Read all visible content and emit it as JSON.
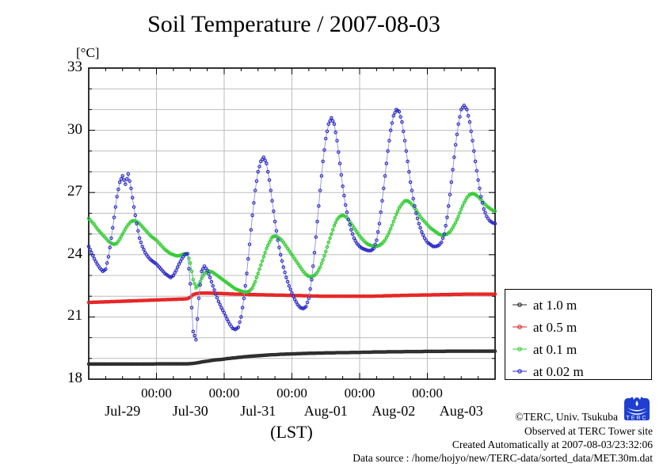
{
  "title": "Soil Temperature / 2007-08-03",
  "y_axis": {
    "unit": "[°C]",
    "tick_labels": [
      "18",
      "21",
      "24",
      "27",
      "30",
      "33"
    ],
    "tick_values": [
      18,
      21,
      24,
      27,
      30,
      33
    ]
  },
  "x_axis": {
    "axis_label": "(LST)",
    "time_ticks": [
      {
        "hour": 24,
        "label": "00:00"
      },
      {
        "hour": 48,
        "label": "00:00"
      },
      {
        "hour": 72,
        "label": "00:00"
      },
      {
        "hour": 96,
        "label": "00:00"
      },
      {
        "hour": 120,
        "label": "00:00"
      }
    ],
    "date_labels": [
      {
        "center_hour": 12,
        "label": "Jul-29"
      },
      {
        "center_hour": 36,
        "label": "Jul-30"
      },
      {
        "center_hour": 60,
        "label": "Jul-31"
      },
      {
        "center_hour": 84,
        "label": "Aug-01"
      },
      {
        "center_hour": 108,
        "label": "Aug-02"
      },
      {
        "center_hour": 132,
        "label": "Aug-03"
      }
    ]
  },
  "legend": {
    "items": [
      {
        "label": "at 1.0 m",
        "color": "#2a2a2a"
      },
      {
        "label": "at 0.5 m",
        "color": "#e62222"
      },
      {
        "label": "at 0.1 m",
        "color": "#33cc33"
      },
      {
        "label": "at 0.02 m",
        "color": "#2929c8"
      }
    ]
  },
  "footer": {
    "copyright": "©TERC, Univ. Tsukuba",
    "observed": "Observed at TERC Tower site",
    "created": "Created Automatically at 2007-08-03/23:32:06",
    "datasource": "Data source : /home/hojyo/new/TERC-data/sorted_data/MET.30m.dat",
    "logo_text": "TERC"
  },
  "chart_data": {
    "type": "line",
    "title": "Soil Temperature / 2007-08-03",
    "ylabel": "[°C]",
    "xlabel": "(LST)",
    "ylim": [
      18,
      33
    ],
    "grid": true,
    "legend_position": "right-outside",
    "x_unit": "hours since 2007-07-29 00:00 LST",
    "x_hours_start": 0,
    "x_hours_step": 1,
    "x_hours_total": 144,
    "series": [
      {
        "name": "at 1.0 m",
        "depth_m": 1.0,
        "color": "#2a2a2a",
        "line_color": "#2a2a2a",
        "values": [
          18.73,
          18.73,
          18.73,
          18.73,
          18.73,
          18.73,
          18.73,
          18.73,
          18.73,
          18.73,
          18.73,
          18.73,
          18.73,
          18.73,
          18.73,
          18.73,
          18.73,
          18.73,
          18.73,
          18.73,
          18.73,
          18.73,
          18.73,
          18.73,
          18.74,
          18.74,
          18.74,
          18.74,
          18.74,
          18.74,
          18.74,
          18.74,
          18.74,
          18.74,
          18.74,
          18.74,
          18.75,
          18.76,
          18.78,
          18.8,
          18.83,
          18.85,
          18.87,
          18.89,
          18.91,
          18.93,
          18.94,
          18.95,
          18.97,
          18.99,
          19.0,
          19.02,
          19.03,
          19.05,
          19.06,
          19.08,
          19.09,
          19.1,
          19.11,
          19.12,
          19.13,
          19.14,
          19.15,
          19.16,
          19.17,
          19.18,
          19.18,
          19.19,
          19.2,
          19.2,
          19.21,
          19.21,
          19.22,
          19.22,
          19.23,
          19.23,
          19.24,
          19.24,
          19.25,
          19.25,
          19.25,
          19.26,
          19.26,
          19.26,
          19.27,
          19.27,
          19.27,
          19.27,
          19.28,
          19.28,
          19.28,
          19.28,
          19.28,
          19.29,
          19.29,
          19.29,
          19.29,
          19.3,
          19.3,
          19.3,
          19.3,
          19.31,
          19.31,
          19.31,
          19.31,
          19.31,
          19.32,
          19.32,
          19.32,
          19.32,
          19.32,
          19.32,
          19.33,
          19.33,
          19.33,
          19.33,
          19.33,
          19.33,
          19.33,
          19.34,
          19.34,
          19.34,
          19.34,
          19.34,
          19.34,
          19.34,
          19.34,
          19.35,
          19.35,
          19.35,
          19.35,
          19.35,
          19.35,
          19.35,
          19.35,
          19.35,
          19.35,
          19.35,
          19.35,
          19.35,
          19.35,
          19.35,
          19.35,
          19.35,
          19.35
        ]
      },
      {
        "name": "at 0.5 m",
        "depth_m": 0.5,
        "color": "#e62222",
        "line_color": "#e62222",
        "values": [
          21.7,
          21.7,
          21.71,
          21.71,
          21.72,
          21.72,
          21.73,
          21.73,
          21.74,
          21.74,
          21.75,
          21.75,
          21.76,
          21.76,
          21.77,
          21.77,
          21.78,
          21.78,
          21.79,
          21.79,
          21.8,
          21.8,
          21.81,
          21.81,
          21.82,
          21.82,
          21.83,
          21.83,
          21.84,
          21.84,
          21.85,
          21.85,
          21.86,
          21.86,
          21.87,
          21.88,
          21.95,
          22.08,
          22.12,
          22.14,
          22.15,
          22.15,
          22.15,
          22.15,
          22.14,
          22.14,
          22.13,
          22.13,
          22.12,
          22.12,
          22.11,
          22.11,
          22.1,
          22.1,
          22.1,
          22.09,
          22.09,
          22.08,
          22.08,
          22.08,
          22.07,
          22.07,
          22.07,
          22.06,
          22.06,
          22.06,
          22.05,
          22.05,
          22.05,
          22.05,
          22.04,
          22.04,
          22.04,
          22.03,
          22.03,
          22.03,
          22.02,
          22.02,
          22.02,
          22.01,
          22.01,
          22.01,
          22.0,
          22.0,
          22.0,
          22.0,
          22.0,
          22.0,
          22.0,
          22.0,
          22.0,
          22.0,
          22.0,
          22.0,
          22.0,
          22.0,
          22.0,
          22.0,
          22.0,
          22.0,
          22.0,
          22.0,
          22.01,
          22.01,
          22.01,
          22.02,
          22.02,
          22.02,
          22.03,
          22.03,
          22.03,
          22.04,
          22.04,
          22.04,
          22.05,
          22.05,
          22.05,
          22.05,
          22.06,
          22.06,
          22.06,
          22.06,
          22.07,
          22.07,
          22.07,
          22.08,
          22.08,
          22.08,
          22.08,
          22.09,
          22.09,
          22.09,
          22.09,
          22.1,
          22.1,
          22.1,
          22.1,
          22.1,
          22.1,
          22.1,
          22.1,
          22.1,
          22.1,
          22.1,
          22.1
        ]
      },
      {
        "name": "at 0.1 m",
        "depth_m": 0.1,
        "color": "#33cc33",
        "line_color": "#33cc33",
        "values": [
          25.75,
          25.6,
          25.45,
          25.25,
          25.1,
          24.95,
          24.8,
          24.65,
          24.55,
          24.5,
          24.55,
          24.75,
          25.0,
          25.25,
          25.45,
          25.6,
          25.65,
          25.6,
          25.5,
          25.35,
          25.2,
          25.05,
          24.9,
          24.8,
          24.7,
          24.55,
          24.4,
          24.25,
          24.15,
          24.05,
          24.0,
          23.95,
          23.95,
          24.0,
          24.05,
          24.05,
          23.6,
          22.8,
          22.4,
          22.55,
          22.85,
          23.1,
          23.2,
          23.2,
          23.15,
          23.05,
          22.95,
          22.85,
          22.75,
          22.65,
          22.55,
          22.45,
          22.35,
          22.3,
          22.25,
          22.2,
          22.2,
          22.25,
          22.4,
          22.7,
          23.1,
          23.5,
          23.9,
          24.3,
          24.6,
          24.85,
          24.9,
          24.85,
          24.75,
          24.6,
          24.4,
          24.2,
          24.0,
          23.8,
          23.6,
          23.4,
          23.2,
          23.05,
          22.95,
          22.95,
          23.0,
          23.15,
          23.4,
          23.75,
          24.15,
          24.6,
          25.0,
          25.4,
          25.7,
          25.85,
          25.9,
          25.85,
          25.7,
          25.5,
          25.3,
          25.1,
          24.9,
          24.75,
          24.6,
          24.5,
          24.45,
          24.4,
          24.4,
          24.45,
          24.55,
          24.7,
          24.95,
          25.25,
          25.6,
          25.95,
          26.25,
          26.45,
          26.6,
          26.6,
          26.5,
          26.35,
          26.15,
          25.95,
          25.75,
          25.6,
          25.45,
          25.3,
          25.2,
          25.1,
          25.0,
          24.95,
          24.95,
          25.0,
          25.1,
          25.3,
          25.55,
          25.85,
          26.2,
          26.5,
          26.75,
          26.9,
          26.95,
          26.9,
          26.8,
          26.65,
          26.5,
          26.35,
          26.25,
          26.15,
          26.1
        ]
      },
      {
        "name": "at 0.02 m",
        "depth_m": 0.02,
        "color": "#2929c8",
        "line_color": "#9090e0",
        "values": [
          24.4,
          24.1,
          23.8,
          23.55,
          23.35,
          23.2,
          23.3,
          23.9,
          24.8,
          25.8,
          26.8,
          27.5,
          27.8,
          27.4,
          27.9,
          27.2,
          26.3,
          25.5,
          24.8,
          24.4,
          24.1,
          23.9,
          23.75,
          23.65,
          23.55,
          23.4,
          23.25,
          23.1,
          23.0,
          22.9,
          23.0,
          23.25,
          23.55,
          23.8,
          24.0,
          24.05,
          22.6,
          20.3,
          19.9,
          21.9,
          23.2,
          23.45,
          23.25,
          22.9,
          22.5,
          22.1,
          21.75,
          21.45,
          21.2,
          20.9,
          20.65,
          20.45,
          20.4,
          20.5,
          21.0,
          21.9,
          23.1,
          24.5,
          25.9,
          27.1,
          28.0,
          28.5,
          28.7,
          28.4,
          27.6,
          26.6,
          25.6,
          24.7,
          24.0,
          23.4,
          22.9,
          22.5,
          22.15,
          21.85,
          21.6,
          21.45,
          21.4,
          21.5,
          21.9,
          22.8,
          24.1,
          25.6,
          27.1,
          28.5,
          29.6,
          30.3,
          30.6,
          30.3,
          29.5,
          28.4,
          27.3,
          26.4,
          25.7,
          25.2,
          24.8,
          24.55,
          24.4,
          24.3,
          24.25,
          24.2,
          24.2,
          24.3,
          24.7,
          25.5,
          26.6,
          27.8,
          29.0,
          30.0,
          30.7,
          31.0,
          30.9,
          30.4,
          29.5,
          28.5,
          27.5,
          26.7,
          26.0,
          25.5,
          25.1,
          24.8,
          24.6,
          24.5,
          24.4,
          24.4,
          24.45,
          24.6,
          25.0,
          25.8,
          26.9,
          28.1,
          29.3,
          30.3,
          31.0,
          31.2,
          31.0,
          30.4,
          29.5,
          28.5,
          27.6,
          26.8,
          26.2,
          25.85,
          25.65,
          25.55,
          25.5
        ]
      }
    ]
  }
}
